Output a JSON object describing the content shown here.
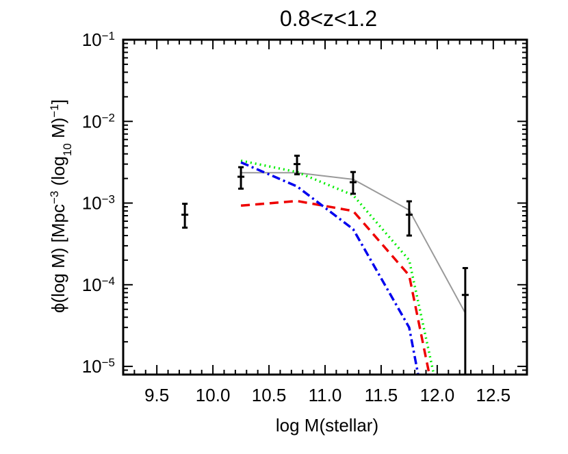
{
  "chart_data": {
    "type": "line",
    "title": "0.8<z<1.2",
    "xlabel": "log M(stellar)",
    "ylabel_parts": {
      "a": "ϕ(log M) [Mpc",
      "b": "−3",
      "c": " (log",
      "d": "10",
      "e": " M)",
      "f": "−1",
      "g": "]"
    },
    "xlim": [
      9.2,
      12.8
    ],
    "ylim_log10": [
      -5.1,
      -1.0
    ],
    "y_scale": "log",
    "x_ticks": [
      {
        "value": 9.5,
        "label": "9.5"
      },
      {
        "value": 10.0,
        "label": "10.0"
      },
      {
        "value": 10.5,
        "label": "10.5"
      },
      {
        "value": 11.0,
        "label": "11.0"
      },
      {
        "value": 11.5,
        "label": "11.5"
      },
      {
        "value": 12.0,
        "label": "12.0"
      },
      {
        "value": 12.5,
        "label": "12.5"
      }
    ],
    "y_ticks": [
      {
        "exp": -1,
        "base": "10",
        "sup": "−1"
      },
      {
        "exp": -2,
        "base": "10",
        "sup": "−2"
      },
      {
        "exp": -3,
        "base": "10",
        "sup": "−3"
      },
      {
        "exp": -4,
        "base": "10",
        "sup": "−4"
      },
      {
        "exp": -5,
        "base": "10",
        "sup": "−5"
      }
    ],
    "points": [
      {
        "x": 9.75,
        "y": 0.00072,
        "ylo": 0.0005,
        "yhi": 0.00098
      },
      {
        "x": 10.25,
        "y": 0.0021,
        "ylo": 0.0015,
        "yhi": 0.00275
      },
      {
        "x": 10.75,
        "y": 0.003,
        "ylo": 0.00225,
        "yhi": 0.0038
      },
      {
        "x": 11.25,
        "y": 0.0018,
        "ylo": 0.0013,
        "yhi": 0.0024
      },
      {
        "x": 11.75,
        "y": 0.00072,
        "ylo": 0.0004,
        "yhi": 0.00105
      },
      {
        "x": 12.25,
        "y": 7.5e-05,
        "ylo": 5e-06,
        "yhi": 0.00016
      }
    ],
    "series": [
      {
        "color": "#999999",
        "dash": "solid",
        "x": [
          10.25,
          10.75,
          11.25,
          11.75,
          12.25
        ],
        "y": [
          0.00235,
          0.00235,
          0.00195,
          0.00082,
          4.5e-05
        ]
      },
      {
        "color": "#00ee00",
        "dash": "dotted",
        "x": [
          10.25,
          10.75,
          11.25,
          11.75,
          11.97
        ],
        "y": [
          0.0033,
          0.0024,
          0.00125,
          0.0002,
          7.9e-06
        ]
      },
      {
        "color": "#ee0000",
        "dash": "dashed",
        "x": [
          10.25,
          10.75,
          11.25,
          11.75,
          11.93
        ],
        "y": [
          0.00093,
          0.00106,
          0.0008,
          0.00013,
          7.9e-06
        ]
      },
      {
        "color": "#0000ee",
        "dash": "dashdot",
        "x": [
          10.25,
          10.75,
          11.25,
          11.75,
          11.83
        ],
        "y": [
          0.00315,
          0.0016,
          0.00048,
          3e-05,
          7.9e-06
        ]
      }
    ],
    "grid": false
  }
}
